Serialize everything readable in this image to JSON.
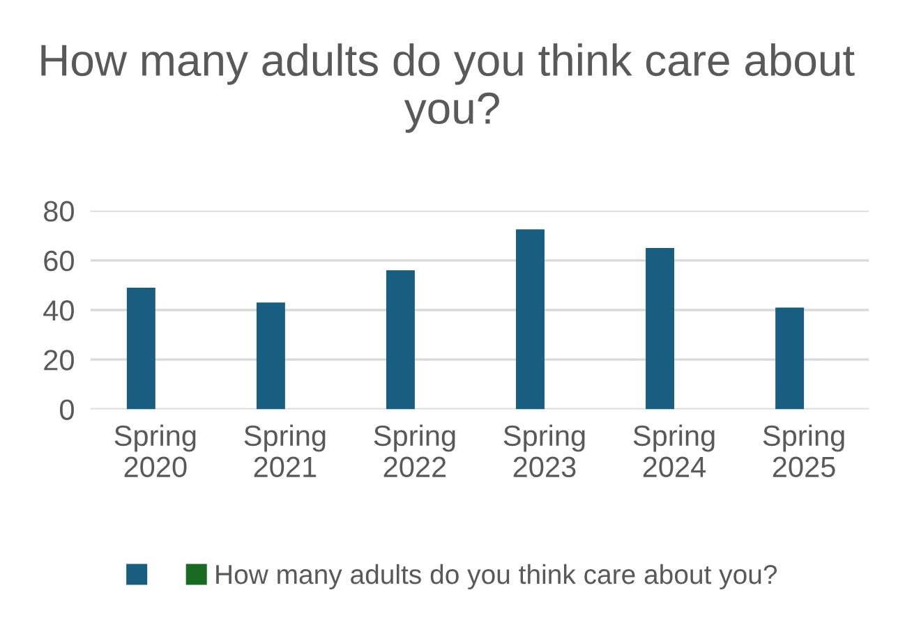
{
  "chart_data": {
    "type": "bar",
    "title": "How many adults do you think care about  you?",
    "categories": [
      "Spring 2020",
      "Spring 2021",
      "Spring 2022",
      "Spring 2023",
      "Spring 2024",
      "Spring 2025"
    ],
    "series": [
      {
        "color": "#175e81",
        "values": [
          49,
          43,
          56,
          72.5,
          65,
          41
        ]
      },
      {
        "name": "How many adults do you think care about you?",
        "color": "#196b24",
        "values": [
          null,
          null,
          null,
          null,
          null,
          null
        ]
      }
    ],
    "ylim": [
      0,
      80
    ],
    "yticks": [
      0,
      20,
      40,
      60,
      80
    ],
    "grid": "y",
    "legend": "bottom"
  }
}
